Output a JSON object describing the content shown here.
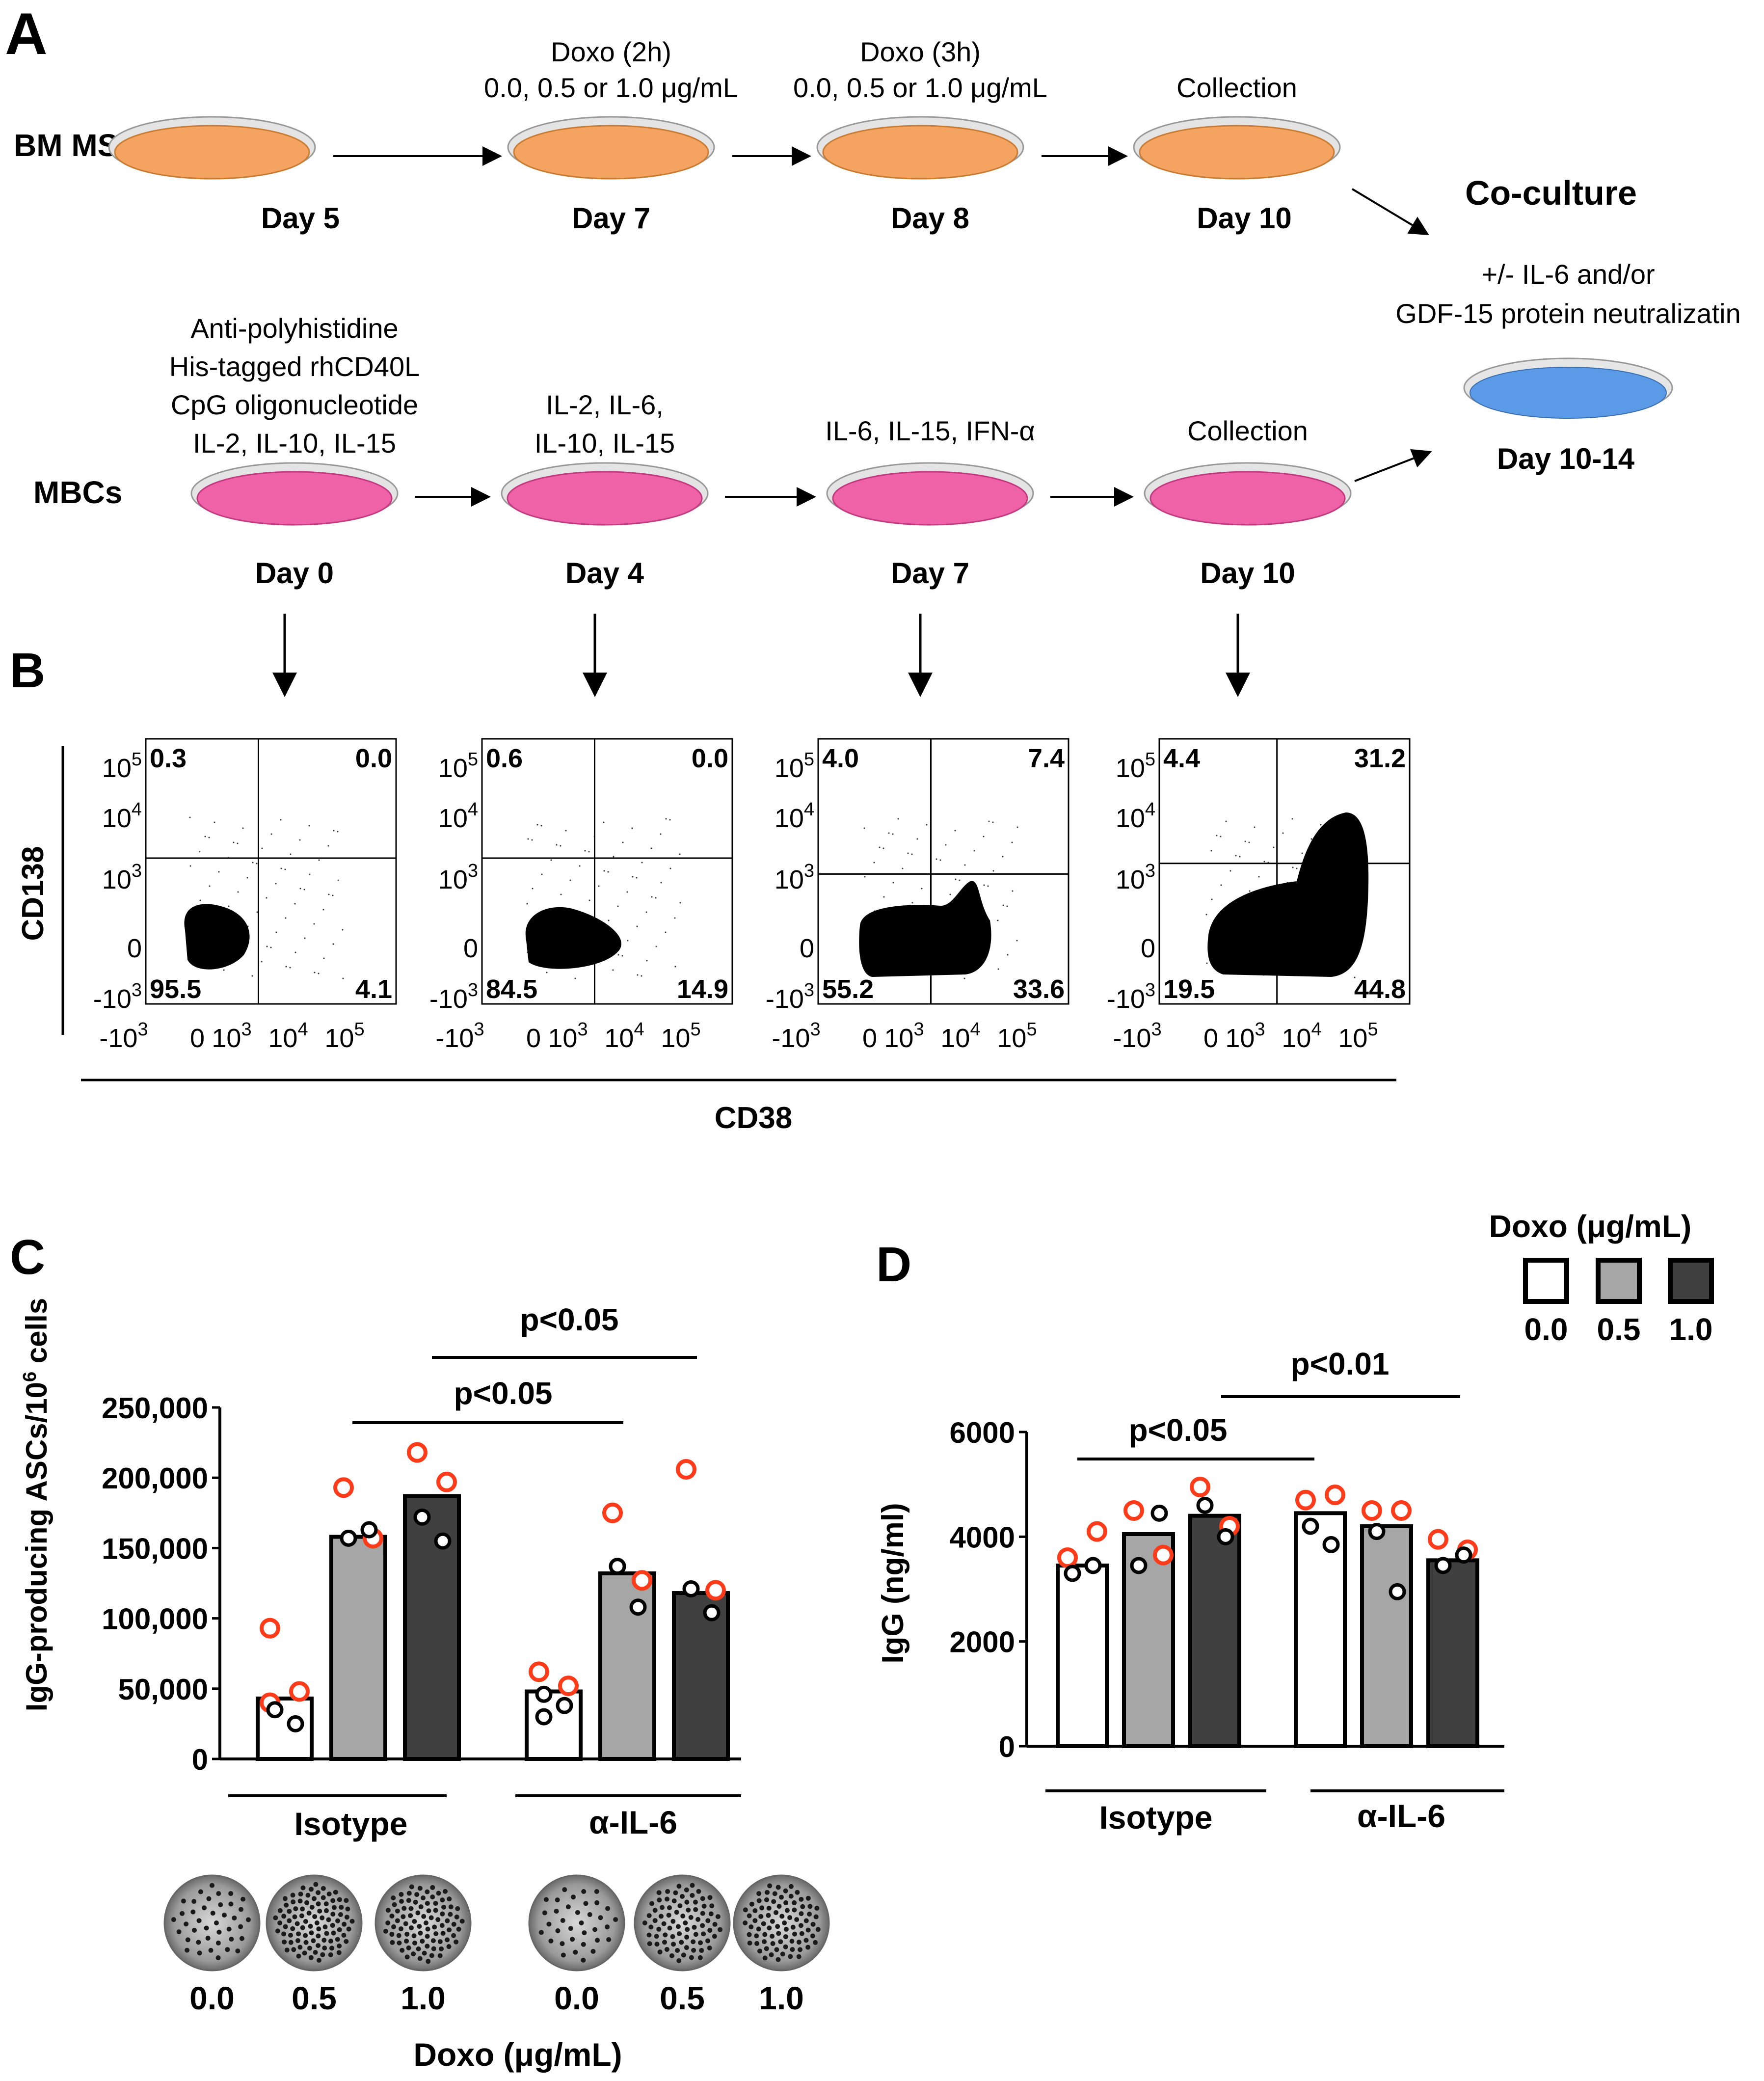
{
  "panels": {
    "A": "A",
    "B": "B",
    "C": "C",
    "D": "D"
  },
  "panel_a": {
    "bm_label": "BM MSCs",
    "mbc_label": "MBCs",
    "bm_steps": [
      {
        "top1": "",
        "top2": "",
        "day": "Day 5"
      },
      {
        "top1": "Doxo (2h)",
        "top2": "0.0, 0.5 or 1.0 μg/mL",
        "day": "Day 7"
      },
      {
        "top1": "Doxo (3h)",
        "top2": "0.0, 0.5 or 1.0 μg/mL",
        "day": "Day 8"
      },
      {
        "top1": "",
        "top2": "Collection",
        "day": "Day 10"
      }
    ],
    "mbc_steps": [
      {
        "lines": [
          "Anti-polyhistidine",
          "His-tagged rhCD40L",
          "CpG oligonucleotide",
          "IL-2, IL-10, IL-15"
        ],
        "day": "Day 0"
      },
      {
        "lines": [
          "IL-2, IL-6,",
          "IL-10, IL-15"
        ],
        "day": "Day 4"
      },
      {
        "lines": [
          "IL-6, IL-15, IFN-α"
        ],
        "day": "Day 7"
      },
      {
        "lines": [
          "Collection"
        ],
        "day": "Day 10"
      }
    ],
    "coculture": {
      "title": "Co-culture",
      "line1": "+/- IL-6 and/or",
      "line2": "GDF-15 protein neutralizatin",
      "day": "Day 10-14"
    },
    "colors": {
      "msc": "#f4a460",
      "mbc": "#f062a8",
      "coculture": "#5a9ae6"
    }
  },
  "panel_b": {
    "y_label": "CD138",
    "x_label": "CD38",
    "y_ticks": [
      "10",
      "10",
      "10",
      "0",
      "-10"
    ],
    "y_exps": [
      "5",
      "4",
      "3",
      "",
      "3"
    ],
    "x_ticks": [
      "-10",
      "0",
      "10",
      "10",
      "10"
    ],
    "x_exps": [
      "3",
      "",
      "3",
      "4",
      "5"
    ],
    "plots": [
      {
        "ul": "0.3",
        "ur": "0.0",
        "ll": "95.5",
        "lr": "4.1"
      },
      {
        "ul": "0.6",
        "ur": "0.0",
        "ll": "84.5",
        "lr": "14.9"
      },
      {
        "ul": "4.0",
        "ur": "7.4",
        "ll": "55.2",
        "lr": "33.6"
      },
      {
        "ul": "4.4",
        "ur": "31.2",
        "ll": "19.5",
        "lr": "44.8"
      }
    ]
  },
  "legend": {
    "title": "Doxo (μg/mL)",
    "labels": [
      "0.0",
      "0.5",
      "1.0"
    ],
    "colors": [
      "#ffffff",
      "#a6a6a6",
      "#404040"
    ]
  },
  "panel_c": {
    "ylabel": "IgG-producing ASCs/10",
    "ylabel_sup": "6",
    "ylabel_end": " cells",
    "yticks": [
      "250,000",
      "200,000",
      "150,000",
      "100,000",
      "50,000",
      "0"
    ],
    "groups": [
      "Isotype",
      "α-IL-6"
    ],
    "pvals": [
      "p<0.05",
      "p<0.05"
    ],
    "spot_labels": [
      "0.0",
      "0.5",
      "1.0",
      "0.0",
      "0.5",
      "1.0"
    ],
    "xlabel": "Doxo (μg/mL)"
  },
  "panel_d": {
    "ylabel": "IgG (ng/ml)",
    "yticks": [
      "6000",
      "4000",
      "2000",
      "0"
    ],
    "groups": [
      "Isotype",
      "α-IL-6"
    ],
    "pvals": [
      "p<0.05",
      "p<0.01"
    ]
  },
  "chart_data": [
    {
      "type": "bar",
      "title": "C",
      "ylabel": "IgG-producing ASCs/10^6 cells",
      "ylim": [
        0,
        250000
      ],
      "groups": [
        "Isotype",
        "α-IL-6"
      ],
      "series": [
        {
          "name": "0.0",
          "values": [
            43000,
            48000
          ],
          "points_red": [
            [
              93000,
              48000,
              40000
            ],
            [
              62000,
              52000
            ]
          ],
          "points_black": [
            [
              35000,
              25000
            ],
            [
              46000,
              38000,
              30000
            ]
          ]
        },
        {
          "name": "0.5",
          "values": [
            158000,
            132000
          ],
          "points_red": [
            [
              193000,
              157000
            ],
            [
              175000,
              127000
            ]
          ],
          "points_black": [
            [
              157000,
              163000
            ],
            [
              137000,
              108000
            ]
          ]
        },
        {
          "name": "1.0",
          "values": [
            187000,
            118000
          ],
          "points_red": [
            [
              218000,
              197000
            ],
            [
              206000,
              120000
            ]
          ],
          "points_black": [
            [
              172000,
              155000
            ],
            [
              121000,
              104000
            ]
          ]
        }
      ]
    },
    {
      "type": "bar",
      "title": "D",
      "ylabel": "IgG (ng/ml)",
      "ylim": [
        0,
        6000
      ],
      "groups": [
        "Isotype",
        "α-IL-6"
      ],
      "series": [
        {
          "name": "0.0",
          "values": [
            3450,
            4450
          ],
          "points_red": [
            [
              3600,
              4100
            ],
            [
              4700,
              4800
            ]
          ],
          "points_black": [
            [
              3300,
              3450
            ],
            [
              4200,
              3850
            ]
          ]
        },
        {
          "name": "0.5",
          "values": [
            4050,
            4200
          ],
          "points_red": [
            [
              4500,
              3650
            ],
            [
              4500,
              4500
            ]
          ],
          "points_black": [
            [
              3450,
              4450
            ],
            [
              4100,
              2950
            ]
          ]
        },
        {
          "name": "1.0",
          "values": [
            4400,
            3550
          ],
          "points_red": [
            [
              4950,
              4200
            ],
            [
              3950,
              3750
            ]
          ],
          "points_black": [
            [
              4600,
              4000
            ],
            [
              3450,
              3650
            ]
          ]
        }
      ]
    }
  ]
}
